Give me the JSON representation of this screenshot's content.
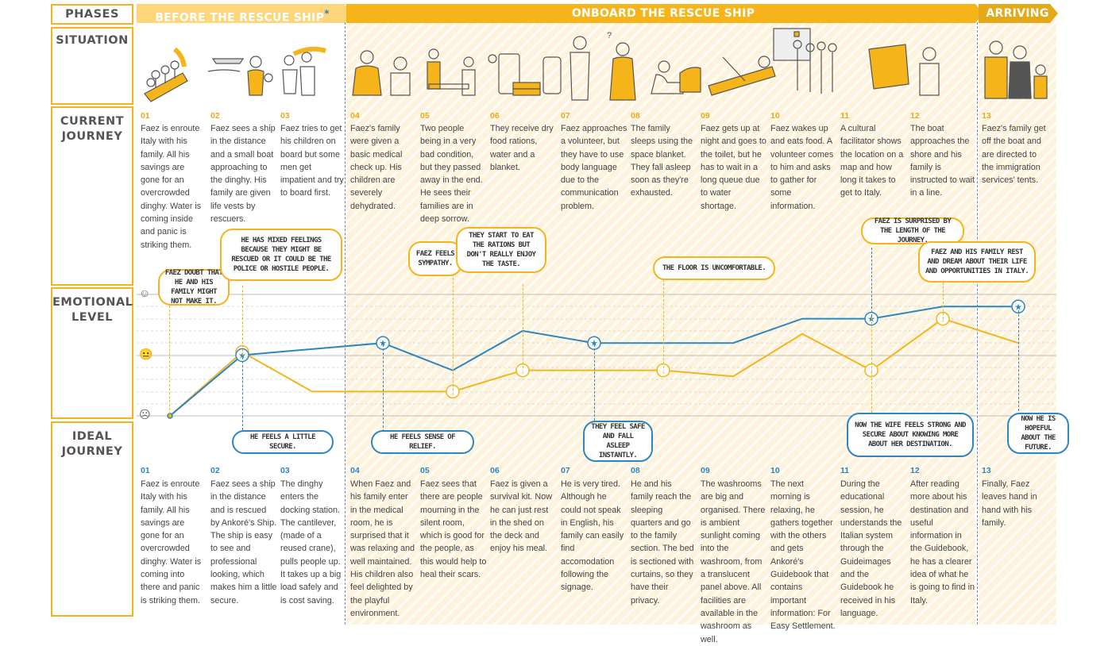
{
  "labels": {
    "phases": "PHASES",
    "situation": "SITUATION",
    "current_journey": [
      "CURRENT",
      "JOURNEY"
    ],
    "emotional_level": [
      "EMOTIONAL",
      "LEVEL"
    ],
    "ideal_journey": [
      "IDEAL",
      "JOURNEY"
    ]
  },
  "phases": [
    {
      "name": "BEFORE THE RESCUE SHIP",
      "mark": "*"
    },
    {
      "name": "ONBOARD THE RESCUE SHIP"
    },
    {
      "name": "ARRIVING"
    }
  ],
  "current_journey": [
    {
      "num": "01",
      "text": "Faez is enroute Italy with his family. All his savings are gone for an overcrowded dinghy. Water is coming inside and panic is striking them."
    },
    {
      "num": "02",
      "text": "Faez sees a ship in the distance and a small boat approaching to the dinghy. His family are given life vests by rescuers."
    },
    {
      "num": "03",
      "text": "Faez tries to get his children on board but some men get impatient and try to board first."
    },
    {
      "num": "04",
      "text": "Faez's family were given a basic medical check up. His children are severely dehydrated."
    },
    {
      "num": "05",
      "text": "Two people being in a very bad condition, but they passed away in the end. He sees their families are in deep sorrow."
    },
    {
      "num": "06",
      "text": "They receive dry food rations, water and a blanket."
    },
    {
      "num": "07",
      "text": "Faez approaches a volunteer, but they have to use body language due to the communication problem."
    },
    {
      "num": "08",
      "text": "The family sleeps using the space blanket. They fall asleep soon as they're exhausted."
    },
    {
      "num": "09",
      "text": "Faez gets up at night and goes to the toilet, but he has to wait in a long queue due to water shortage."
    },
    {
      "num": "10",
      "text": "Faez wakes up and eats food. A volunteer comes to him and asks to gather for some information."
    },
    {
      "num": "11",
      "text": "A cultural facilitator shows the location on a map and how long it takes to get to Italy."
    },
    {
      "num": "12",
      "text": "The boat approaches the shore and his family is instructed to wait in a line."
    },
    {
      "num": "13",
      "text": "Faez's family get off the boat and are directed to the immigration services' tents."
    }
  ],
  "ideal_journey": [
    {
      "num": "01",
      "text": "Faez is enroute Italy with his family. All his savings are gone for an overcrowded dinghy. Water is coming into there and panic is striking them."
    },
    {
      "num": "02",
      "text": "Faez sees a ship in the distance and is rescued by Ankoré's Ship. The ship is easy to see and professional looking, which makes him a little secure."
    },
    {
      "num": "03",
      "text": "The dinghy enters the docking station. The cantilever, (made of a reused crane), pulls people up. It takes up a big load safely and is cost saving."
    },
    {
      "num": "04",
      "text": "When Faez and his family enter in the medical room, he is surprised that it was relaxing and well maintained. His children also feel delighted by the playful environment."
    },
    {
      "num": "05",
      "text": "Faez sees that there are people mourning in the silent room, which is good for the people, as this would help to heal their scars."
    },
    {
      "num": "06",
      "text": "Faez is given a survival kit. Now he can just rest in the shed on the deck and enjoy his meal."
    },
    {
      "num": "07",
      "text": "He is very tired. Although he could not speak in English, his family can easily find accomodation following the signage."
    },
    {
      "num": "08",
      "text": "He and his family reach the sleeping quarters and go to the family section. The bed is sectioned with curtains, so they have their privacy."
    },
    {
      "num": "09",
      "text": "The washrooms are big and organised. There is ambient sunlight coming into the washroom, from a translucent panel above. All facilities are available in the washroom as well."
    },
    {
      "num": "10",
      "text": "The next morning is relaxing, he gathers together with the others and gets Ankoré's Guidebook that contains important information: For Easy Settlement."
    },
    {
      "num": "11",
      "text": "During the educational session, he understands the Italian system through the Guideimages and the Guidebook he received in his language."
    },
    {
      "num": "12",
      "text": "After reading more about his destination and useful information in the Guidebook, he has a clearer idea of what he is going to find in Italy."
    },
    {
      "num": "13",
      "text": "Finally, Faez leaves hand in hand with his family."
    }
  ],
  "current_comments": [
    "FAEZ DOUBT THAT HE AND HIS FAMILY MIGHT NOT MAKE IT.",
    "HE HAS MIXED FEELINGS BECAUSE THEY MIGHT BE RESCUED OR IT COULD BE THE POLICE OR HOSTILE PEOPLE.",
    "FAEZ FEELS SYMPATHY.",
    "THEY START TO EAT THE RATIONS BUT DON'T REALLY ENJOY THE TASTE.",
    "THE FLOOR IS UNCOMFORTABLE.",
    "FAEZ IS SURPRISED BY THE LENGTH OF THE JOURNEY.",
    "FAEZ AND HIS FAMILY REST AND DREAM ABOUT THEIR LIFE AND OPPORTUNITIES IN ITALY."
  ],
  "ideal_comments": [
    "HE FEELS A LITTLE SECURE.",
    "HE FEELS SENSE OF RELIEF.",
    "THEY FEEL SAFE AND FALL ASLEEP INSTANTLY.",
    "NOW THE WIFE FEELS STRONG AND SECURE ABOUT KNOWING MORE ABOUT HER DESTINATION.",
    "NOW HE IS HOPEFUL ABOUT THE FUTURE."
  ],
  "emotion_scale": {
    "levels": [
      "happy",
      "neutral",
      "sad"
    ],
    "icons": [
      "happy-face-icon",
      "neutral-face-icon",
      "sad-face-icon"
    ]
  },
  "emotional_curve": {
    "current": [
      0,
      1.05,
      0.4,
      0.4,
      0.4,
      0.75,
      0.75,
      0.75,
      0.65,
      1.35,
      0.75,
      1.6,
      1.2
    ],
    "ideal": [
      0,
      1.0,
      1.1,
      1.2,
      0.75,
      1.4,
      1.2,
      1.2,
      1.2,
      1.6,
      1.6,
      1.8,
      1.8
    ]
  },
  "colors": {
    "accent": "#f4b41a",
    "ideal": "#2e86c1",
    "current": "#f4b41a",
    "hatch": "#fdf3dc",
    "grid": "#cfcfcf"
  }
}
